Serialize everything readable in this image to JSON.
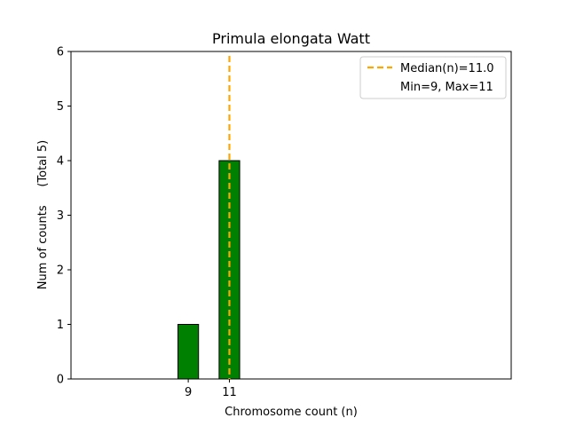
{
  "chart_data": {
    "type": "bar",
    "title": "Primula elongata Watt",
    "xlabel": "Chromosome count (n)",
    "ylabel": "Num of counts     (Total 5)",
    "x": [
      9,
      11
    ],
    "values": [
      1,
      4
    ],
    "xticks": [
      "9",
      "11"
    ],
    "yticks": [
      "0",
      "1",
      "2",
      "3",
      "4",
      "5",
      "6"
    ],
    "ylim": [
      0,
      6
    ],
    "xlim": [
      3.3,
      24.7
    ],
    "bar_color": "#008000",
    "bar_edge_color": "#000000",
    "median": 11.0,
    "median_color": "#ffa500",
    "legend": {
      "position": "top-right",
      "entries": [
        "Median(n)=11.0",
        "Min=9, Max=11"
      ]
    }
  }
}
